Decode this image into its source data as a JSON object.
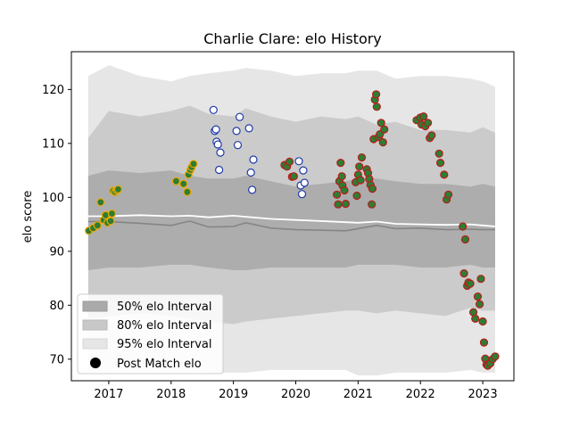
{
  "chart_data": {
    "type": "scatter",
    "title": "Charlie Clare: elo History",
    "xlabel": "",
    "ylabel": "elo score",
    "xlim": [
      2016.4,
      2023.5
    ],
    "ylim": [
      66,
      127
    ],
    "x_ticks": [
      2017,
      2018,
      2019,
      2020,
      2021,
      2022,
      2023
    ],
    "x_tick_labels": [
      "2017",
      "2018",
      "2019",
      "2020",
      "2021",
      "2022",
      "2023"
    ],
    "y_ticks": [
      70,
      80,
      90,
      100,
      110,
      120
    ],
    "y_tick_labels": [
      "70",
      "80",
      "90",
      "100",
      "110",
      "120"
    ],
    "grid": false,
    "legend_position": "lower-left",
    "legend": [
      {
        "label": "50% elo Interval",
        "color": "#aaaaaa"
      },
      {
        "label": "80% elo Interval",
        "color": "#c8c8c8"
      },
      {
        "label": "95% elo Interval",
        "color": "#e6e6e6"
      },
      {
        "label": "Post Match elo",
        "color": "#000000"
      }
    ],
    "bands": {
      "x": [
        2016.67,
        2017.0,
        2017.5,
        2018.0,
        2018.3,
        2018.6,
        2019.0,
        2019.2,
        2019.6,
        2020.0,
        2020.4,
        2020.8,
        2021.0,
        2021.3,
        2021.6,
        2022.0,
        2022.4,
        2022.8,
        2023.0,
        2023.2
      ],
      "p95_lo": [
        67.5,
        68.0,
        68.0,
        68.0,
        68.0,
        67.5,
        67.5,
        67.5,
        68.0,
        68.0,
        68.0,
        68.0,
        67.0,
        67.0,
        67.5,
        67.5,
        67.5,
        68.0,
        67.5,
        67.5
      ],
      "p95_hi": [
        122.5,
        124.5,
        122.5,
        121.5,
        122.5,
        123.0,
        123.5,
        124.0,
        123.5,
        122.5,
        123.0,
        123.0,
        123.5,
        123.5,
        122.0,
        122.5,
        122.5,
        122.0,
        121.5,
        120.5
      ],
      "p80_lo": [
        77.5,
        78.0,
        78.5,
        78.0,
        77.5,
        77.0,
        76.5,
        77.0,
        77.5,
        78.0,
        78.5,
        79.0,
        79.0,
        78.5,
        79.0,
        78.5,
        78.0,
        79.5,
        79.0,
        79.0
      ],
      "p80_hi": [
        111.0,
        116.0,
        115.0,
        116.0,
        117.0,
        115.5,
        115.0,
        116.5,
        115.0,
        114.0,
        115.0,
        114.5,
        115.0,
        113.5,
        114.0,
        112.5,
        112.5,
        112.0,
        113.0,
        112.0
      ],
      "p50_lo": [
        86.5,
        87.0,
        87.0,
        87.5,
        87.5,
        87.0,
        86.5,
        86.5,
        87.0,
        87.0,
        87.0,
        87.0,
        87.5,
        87.5,
        87.5,
        87.0,
        87.0,
        87.5,
        87.0,
        87.0
      ],
      "p50_hi": [
        104.0,
        105.0,
        104.5,
        105.0,
        104.0,
        103.5,
        103.5,
        104.0,
        103.0,
        102.0,
        102.5,
        103.0,
        103.5,
        103.5,
        103.0,
        102.5,
        102.5,
        102.0,
        102.5,
        102.0
      ],
      "median": [
        95.5,
        95.5,
        95.2,
        94.8,
        95.6,
        94.5,
        94.6,
        95.3,
        94.3,
        94.0,
        93.9,
        93.8,
        94.2,
        94.8,
        94.2,
        94.3,
        94.0,
        94.1,
        94.0,
        94.0
      ],
      "mean": [
        96.5,
        96.5,
        96.7,
        96.5,
        96.6,
        96.3,
        96.6,
        96.4,
        96.0,
        95.8,
        95.6,
        95.4,
        95.3,
        95.5,
        95.1,
        95.0,
        94.9,
        95.0,
        94.8,
        94.6
      ]
    },
    "series": [
      {
        "face": "#2e7d32",
        "edge": "#f0a800",
        "x": [
          2016.68,
          2016.75,
          2016.82,
          2016.87,
          2016.92,
          2016.95,
          2016.98,
          2017.03,
          2017.05,
          2017.07,
          2017.1,
          2017.13,
          2017.15
        ],
        "y": [
          93.8,
          94.3,
          94.8,
          99.1,
          95.8,
          96.7,
          95.3,
          95.6,
          97.0,
          101.2,
          101.0,
          101.3,
          101.5
        ]
      },
      {
        "face": "#2e7d32",
        "edge": "#f0a800",
        "x": [
          2018.08,
          2018.2,
          2018.26,
          2018.28,
          2018.31,
          2018.33,
          2018.36
        ],
        "y": [
          103.0,
          102.5,
          101.0,
          104.2,
          105.1,
          105.6,
          106.2
        ]
      },
      {
        "face": "#ffffff",
        "edge": "#1f3aa8",
        "x": [
          2018.68,
          2018.7,
          2018.72,
          2018.73,
          2018.75,
          2018.77,
          2018.79,
          2019.05,
          2019.07,
          2019.1,
          2019.25,
          2019.28,
          2019.3,
          2019.32
        ],
        "y": [
          116.2,
          112.3,
          112.6,
          110.3,
          109.8,
          105.1,
          108.3,
          112.3,
          109.7,
          114.9,
          112.8,
          104.6,
          101.4,
          107.0
        ]
      },
      {
        "face": "#2e7d32",
        "edge": "#b71c1c",
        "x": [
          2019.82,
          2019.86,
          2019.9,
          2019.94,
          2019.97
        ],
        "y": [
          106.0,
          105.7,
          106.6,
          103.8,
          103.9
        ]
      },
      {
        "face": "#ffffff",
        "edge": "#1f3aa8",
        "x": [
          2020.05,
          2020.08,
          2020.1,
          2020.12,
          2020.14
        ],
        "y": [
          106.7,
          102.2,
          100.6,
          105.0,
          102.7
        ]
      },
      {
        "face": "#2e7d32",
        "edge": "#b71c1c",
        "x": [
          2020.66,
          2020.68,
          2020.7,
          2020.72,
          2020.74,
          2020.75,
          2020.78,
          2020.8,
          2020.96,
          2020.98,
          2021.0,
          2021.02,
          2021.04,
          2021.06,
          2021.14,
          2021.16,
          2021.18,
          2021.2,
          2021.22,
          2021.23,
          2021.25,
          2021.27,
          2021.29,
          2021.3,
          2021.33,
          2021.35,
          2021.37,
          2021.4,
          2021.42
        ],
        "y": [
          100.5,
          98.7,
          103.0,
          106.4,
          103.9,
          102.2,
          101.3,
          98.8,
          102.8,
          100.3,
          104.2,
          105.7,
          103.2,
          107.4,
          105.2,
          104.5,
          103.4,
          102.3,
          98.7,
          101.6,
          110.8,
          118.1,
          119.1,
          116.8,
          111.2,
          111.7,
          113.8,
          110.2,
          112.6
        ]
      },
      {
        "face": "#2e7d32",
        "edge": "#b71c1c",
        "x": [
          2021.94,
          2022.0,
          2022.02,
          2022.05,
          2022.08,
          2022.12,
          2022.15,
          2022.18,
          2022.3,
          2022.32,
          2022.38,
          2022.42,
          2022.45
        ],
        "y": [
          114.3,
          114.8,
          113.5,
          115.0,
          113.2,
          113.8,
          111.0,
          111.5,
          108.1,
          106.4,
          104.2,
          99.6,
          100.5
        ]
      },
      {
        "face": "#2e7d32",
        "edge": "#b71c1c",
        "x": [
          2022.68,
          2022.7,
          2022.72,
          2022.75,
          2022.77,
          2022.8,
          2022.85,
          2022.88,
          2022.92,
          2022.95,
          2022.97,
          2023.0,
          2023.02,
          2023.04,
          2023.06,
          2023.08,
          2023.12,
          2023.16,
          2023.2
        ],
        "y": [
          94.6,
          85.9,
          92.2,
          83.6,
          84.2,
          84.0,
          78.7,
          77.5,
          81.6,
          80.2,
          84.9,
          77.0,
          73.1,
          70.1,
          69.0,
          68.8,
          69.2,
          70.0,
          70.5
        ]
      }
    ]
  }
}
